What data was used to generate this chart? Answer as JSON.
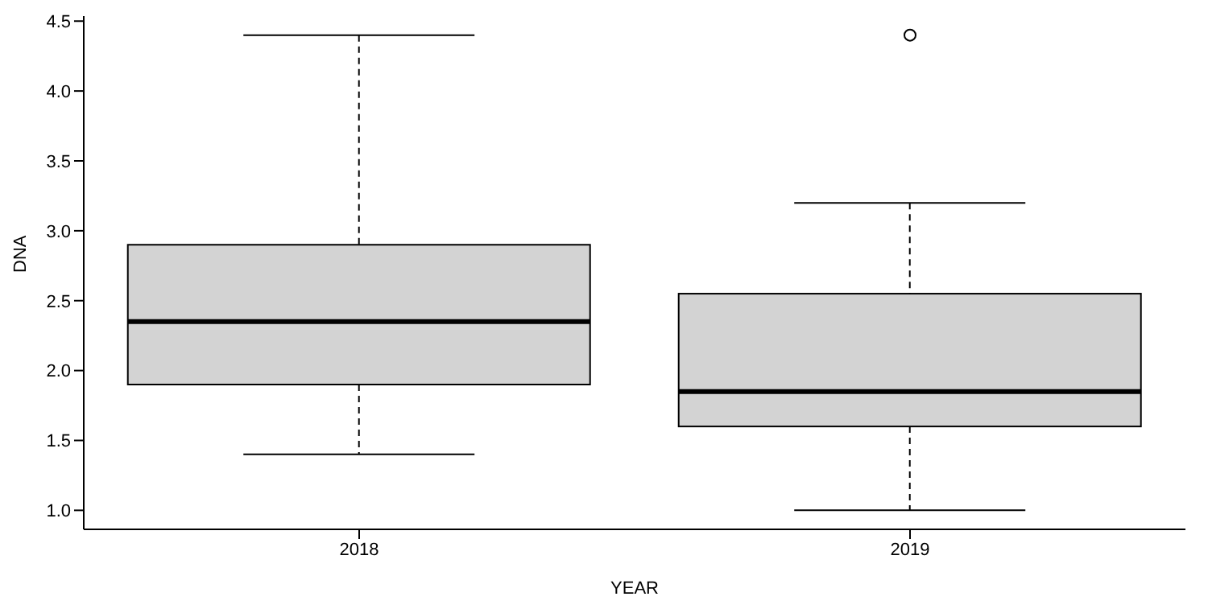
{
  "chart_data": {
    "type": "box",
    "xlabel": "YEAR",
    "ylabel": "DNA",
    "categories": [
      "2018",
      "2019"
    ],
    "boxes": [
      {
        "low": 1.4,
        "q1": 1.9,
        "median": 2.35,
        "q3": 2.9,
        "high": 4.4
      },
      {
        "low": 1.0,
        "q1": 1.6,
        "median": 1.85,
        "q3": 2.55,
        "high": 3.2,
        "outliers": [
          4.4
        ]
      }
    ],
    "color": "#d3d3d3",
    "ylim": [
      0.864,
      4.536
    ],
    "yticks": [
      {
        "value": 1,
        "label": "1.0"
      },
      {
        "value": 1.5,
        "label": "1.5"
      },
      {
        "value": 2,
        "label": "2.0"
      },
      {
        "value": 2.5,
        "label": "2.5"
      },
      {
        "value": 3,
        "label": "3.0"
      },
      {
        "value": 3.5,
        "label": "3.5"
      },
      {
        "value": 4,
        "label": "4.0"
      },
      {
        "value": 4.5,
        "label": "4.5"
      }
    ],
    "grid": false,
    "legend": false
  }
}
